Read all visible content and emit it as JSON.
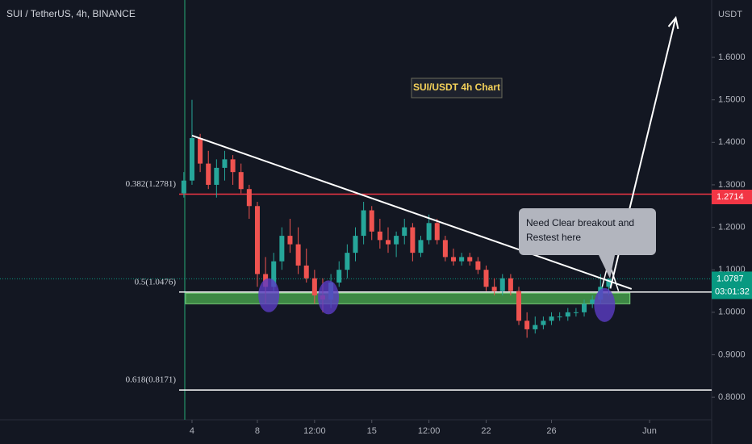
{
  "chart_data": {
    "type": "candlestick",
    "title": "SUI / TetherUS, 4h, BINANCE",
    "annotation_title": "SUI/USDT 4h Chart",
    "y_unit": "USDT",
    "x": [
      3.5,
      4,
      4.5,
      5,
      5.5,
      6,
      6.5,
      7,
      7.5,
      8,
      8.5,
      9,
      9.5,
      10,
      10.5,
      11,
      11.5,
      12,
      12.5,
      13,
      13.5,
      14,
      14.5,
      15,
      15.5,
      16,
      16.5,
      17,
      17.5,
      18,
      18.5,
      19,
      19.5,
      20,
      20.5,
      21,
      21.5,
      22,
      22.5,
      23,
      23.5,
      24,
      24.5,
      25,
      25.5,
      26,
      26.5,
      27,
      27.5,
      28,
      28.5,
      29,
      29.5
    ],
    "open": [
      1.28,
      1.31,
      1.41,
      1.35,
      1.3,
      1.34,
      1.36,
      1.33,
      1.29,
      1.25,
      1.09,
      1.06,
      1.12,
      1.18,
      1.16,
      1.11,
      1.08,
      1.04,
      1.03,
      1.07,
      1.1,
      1.14,
      1.18,
      1.24,
      1.19,
      1.17,
      1.16,
      1.18,
      1.2,
      1.14,
      1.17,
      1.21,
      1.17,
      1.13,
      1.12,
      1.13,
      1.12,
      1.1,
      1.06,
      1.05,
      1.08,
      1.05,
      0.98,
      0.96,
      0.97,
      0.98,
      0.99,
      0.99,
      1.0,
      1.0,
      1.02,
      1.03,
      1.06
    ],
    "high": [
      1.33,
      1.5,
      1.42,
      1.38,
      1.36,
      1.38,
      1.37,
      1.35,
      1.3,
      1.26,
      1.13,
      1.14,
      1.2,
      1.22,
      1.2,
      1.15,
      1.1,
      1.08,
      1.09,
      1.12,
      1.16,
      1.2,
      1.26,
      1.25,
      1.22,
      1.2,
      1.19,
      1.22,
      1.21,
      1.18,
      1.23,
      1.22,
      1.18,
      1.15,
      1.14,
      1.14,
      1.13,
      1.11,
      1.08,
      1.09,
      1.09,
      1.06,
      1.0,
      0.99,
      0.99,
      1.0,
      1.0,
      1.01,
      1.01,
      1.03,
      1.04,
      1.09,
      1.08
    ],
    "low": [
      1.27,
      1.3,
      1.33,
      1.29,
      1.27,
      1.31,
      1.3,
      1.28,
      1.22,
      1.06,
      1.02,
      1.05,
      1.1,
      1.14,
      1.09,
      1.07,
      1.02,
      1.0,
      1.01,
      1.06,
      1.08,
      1.12,
      1.16,
      1.17,
      1.15,
      1.14,
      1.13,
      1.16,
      1.12,
      1.13,
      1.16,
      1.16,
      1.12,
      1.11,
      1.11,
      1.11,
      1.09,
      1.05,
      1.04,
      1.04,
      1.04,
      0.97,
      0.94,
      0.95,
      0.96,
      0.97,
      0.98,
      0.98,
      0.99,
      0.99,
      1.01,
      1.02,
      1.04
    ],
    "close": [
      1.31,
      1.41,
      1.35,
      1.3,
      1.34,
      1.36,
      1.33,
      1.29,
      1.25,
      1.09,
      1.06,
      1.12,
      1.18,
      1.16,
      1.11,
      1.08,
      1.04,
      1.03,
      1.07,
      1.1,
      1.14,
      1.18,
      1.24,
      1.19,
      1.17,
      1.16,
      1.18,
      1.2,
      1.14,
      1.17,
      1.21,
      1.17,
      1.13,
      1.12,
      1.13,
      1.12,
      1.1,
      1.06,
      1.05,
      1.08,
      1.05,
      0.98,
      0.96,
      0.97,
      0.98,
      0.99,
      0.99,
      1.0,
      1.0,
      1.02,
      1.03,
      1.06,
      1.0787
    ],
    "up_color": "#26a69a",
    "down_color": "#ef5350",
    "xlim": [
      -7.75,
      35.8
    ],
    "xticks": [
      4,
      8,
      {
        "value": 11.5,
        "label": "12:00"
      },
      15,
      {
        "value": 18.5,
        "label": "12:00"
      },
      22,
      26,
      {
        "value": 32,
        "label": "Jun"
      }
    ],
    "ylim": [
      0.747,
      1.735
    ],
    "yticks": [
      {
        "value": 0.8,
        "label": "0.8000"
      },
      {
        "value": 0.9,
        "label": "0.9000"
      },
      {
        "value": 1.0,
        "label": "1.0000"
      },
      {
        "value": 1.1,
        "label": "1.1000"
      },
      {
        "value": 1.2,
        "label": "1.2000"
      },
      {
        "value": 1.3,
        "label": "1.3000"
      },
      {
        "value": 1.4,
        "label": "1.4000"
      },
      {
        "value": 1.5,
        "label": "1.5000"
      },
      {
        "value": 1.6,
        "label": "1.6000"
      }
    ],
    "fib_levels": [
      {
        "label": "0.382(1.2781)",
        "value": 1.2781,
        "color": "#f23645"
      },
      {
        "label": "0.5(1.0476)",
        "value": 1.0476,
        "color": "#ffffff"
      },
      {
        "label": "0.618(0.8171)",
        "value": 0.8171,
        "color": "#ffffff"
      }
    ],
    "alert_price": 1.2714,
    "alert_color": "#f23645",
    "last_color": "#089981",
    "countdown": "03:01:32",
    "zone": {
      "x": [
        3.6,
        30.8
      ],
      "y": [
        1.02,
        1.045
      ],
      "color": "#4caf50"
    },
    "trendline": {
      "x": [
        4,
        30.9
      ],
      "y": [
        1.416,
        1.055
      ]
    },
    "arrow": {
      "x": [
        29.6,
        33.6
      ],
      "y": [
        1.056,
        1.693
      ]
    },
    "pointer": {
      "x": [
        29.1,
        29.5,
        30.1
      ],
      "y": [
        1.06,
        1.12,
        1.05
      ]
    },
    "ellipses": {
      "x": [
        8.7,
        12.35,
        29.25
      ],
      "y": [
        1.04,
        1.035,
        1.017
      ],
      "color": "#5b3cc4"
    },
    "callout": [
      "Need Clear breakout and",
      "Restest here"
    ]
  }
}
